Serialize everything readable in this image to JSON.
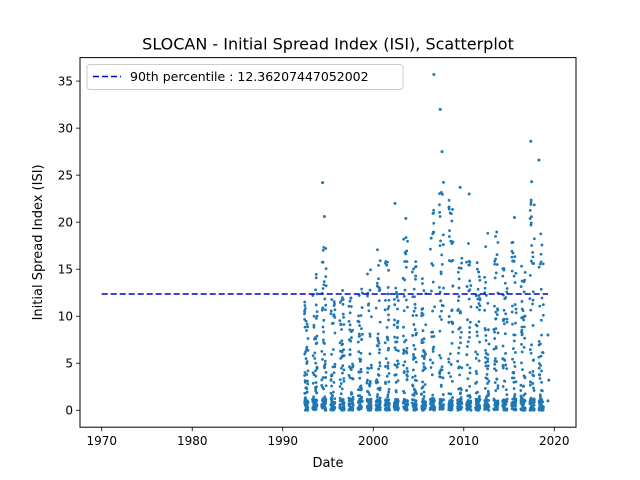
{
  "chart_data": {
    "type": "scatter",
    "title": "SLOCAN - Initial Spread Index (ISI), Scatterplot",
    "xlabel": "Date",
    "ylabel": "Initial Spread Index (ISI)",
    "xlim": [
      1967.6,
      2022.4
    ],
    "ylim": [
      -1.8,
      37.5
    ],
    "xticks": [
      1970,
      1980,
      1990,
      2000,
      2010,
      2020
    ],
    "yticks": [
      0,
      5,
      10,
      15,
      20,
      25,
      30,
      35
    ],
    "grid": false,
    "legend_position": "top-left",
    "colors": {
      "points": "#1f77b4",
      "percentile_line": "#0000cc"
    },
    "percentile_line": {
      "label": "90th percentile : 12.36207447052002",
      "value": 12.36207447052002,
      "x_range": [
        1970,
        2019.3
      ],
      "style": "dashed"
    },
    "data_extent": {
      "x_start": 1992.4,
      "x_end": 2019.3
    },
    "notable_points": [
      {
        "x": 2006.7,
        "y": 35.7
      },
      {
        "x": 2007.4,
        "y": 32.0
      },
      {
        "x": 2017.4,
        "y": 28.6
      },
      {
        "x": 2007.6,
        "y": 27.5
      },
      {
        "x": 2018.3,
        "y": 26.6
      },
      {
        "x": 1994.4,
        "y": 24.2
      },
      {
        "x": 2017.5,
        "y": 24.3
      },
      {
        "x": 2009.6,
        "y": 23.7
      },
      {
        "x": 2010.6,
        "y": 23.0
      },
      {
        "x": 2002.4,
        "y": 22.0
      },
      {
        "x": 1994.6,
        "y": 20.6
      },
      {
        "x": 2003.6,
        "y": 20.4
      },
      {
        "x": 2015.6,
        "y": 20.5
      },
      {
        "x": 2019.3,
        "y": 8.0
      },
      {
        "x": 2019.4,
        "y": 3.2
      },
      {
        "x": 2019.3,
        "y": 1.0
      }
    ],
    "seasonal_columns": {
      "season_fraction": [
        0.3,
        0.8
      ],
      "years": [
        {
          "year": 1992,
          "max": 12.0
        },
        {
          "year": 1993,
          "max": 15.0
        },
        {
          "year": 1994,
          "max": 18.3
        },
        {
          "year": 1995,
          "max": 12.2
        },
        {
          "year": 1996,
          "max": 13.5
        },
        {
          "year": 1997,
          "max": 12.7
        },
        {
          "year": 1998,
          "max": 13.0
        },
        {
          "year": 1999,
          "max": 15.3
        },
        {
          "year": 2000,
          "max": 17.8
        },
        {
          "year": 2001,
          "max": 15.9
        },
        {
          "year": 2002,
          "max": 13.0
        },
        {
          "year": 2003,
          "max": 18.5
        },
        {
          "year": 2004,
          "max": 16.0
        },
        {
          "year": 2005,
          "max": 14.0
        },
        {
          "year": 2006,
          "max": 22.0
        },
        {
          "year": 2007,
          "max": 24.5
        },
        {
          "year": 2008,
          "max": 22.4
        },
        {
          "year": 2009,
          "max": 17.2
        },
        {
          "year": 2010,
          "max": 18.0
        },
        {
          "year": 2011,
          "max": 15.7
        },
        {
          "year": 2012,
          "max": 18.9
        },
        {
          "year": 2013,
          "max": 19.6
        },
        {
          "year": 2014,
          "max": 16.0
        },
        {
          "year": 2015,
          "max": 17.9
        },
        {
          "year": 2016,
          "max": 15.5
        },
        {
          "year": 2017,
          "max": 22.8
        },
        {
          "year": 2018,
          "max": 19.8
        }
      ]
    }
  }
}
